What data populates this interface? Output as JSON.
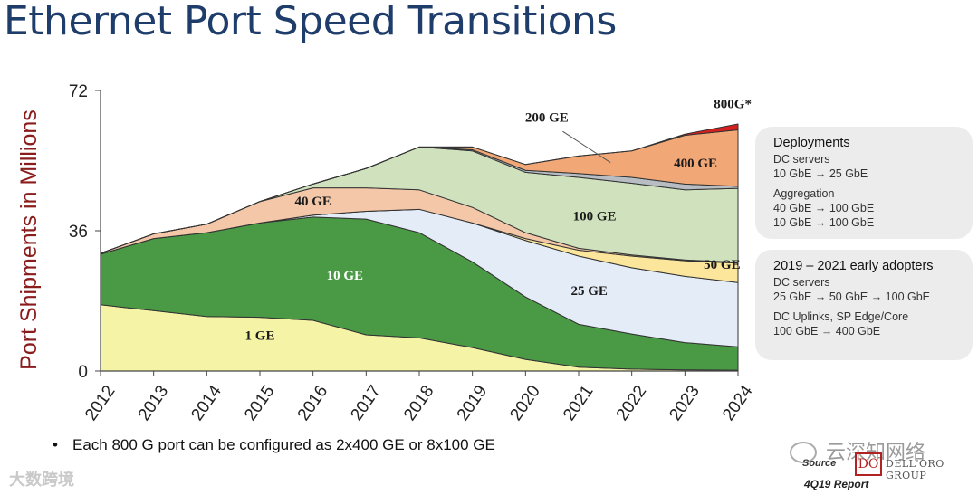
{
  "title": "Ethernet Port Speed Transitions",
  "chart_data": {
    "type": "area",
    "stacked": true,
    "title": "Ethernet Port Speed Transitions",
    "ylabel": "Port Shipments in Millions",
    "xlabel": "",
    "ylim": [
      0,
      72
    ],
    "yticks": [
      0,
      36,
      72
    ],
    "categories": [
      "2012",
      "2013",
      "2014",
      "2015",
      "2016",
      "2017",
      "2018",
      "2019",
      "2020",
      "2021",
      "2022",
      "2023",
      "2024"
    ],
    "series": [
      {
        "name": "1 GE",
        "color": "#f5f3a6",
        "values": [
          17,
          15.5,
          14,
          13.8,
          13,
          9.3,
          8.5,
          6,
          3,
          1,
          0.5,
          0.3,
          0.2
        ]
      },
      {
        "name": "10 GE",
        "color": "#4a9a45",
        "values": [
          13,
          18.5,
          21.5,
          24.2,
          26.5,
          29.7,
          27,
          22,
          16,
          11,
          9,
          7,
          6
        ]
      },
      {
        "name": "25 GE",
        "color": "#e4ecf7",
        "values": [
          0,
          0,
          0,
          0,
          0.5,
          2,
          6,
          10,
          14.5,
          17.5,
          17,
          17,
          16.5
        ]
      },
      {
        "name": "50 GE",
        "color": "#fbe69c",
        "values": [
          0,
          0,
          0,
          0,
          0,
          0,
          0,
          0,
          0.5,
          1.5,
          3,
          4,
          5
        ]
      },
      {
        "name": "40 GE",
        "color": "#f3c7a8",
        "values": [
          0.2,
          1.2,
          2.2,
          5.5,
          7,
          6,
          5,
          4,
          1.5,
          0.5,
          0.3,
          0.2,
          0.2
        ]
      },
      {
        "name": "100 GE",
        "color": "#cfe2bd",
        "values": [
          0,
          0,
          0,
          0,
          1,
          5,
          11,
          14.5,
          15.5,
          18.2,
          18.4,
          18,
          19
        ]
      },
      {
        "name": "200 GE",
        "color": "#b7bdc3",
        "values": [
          0,
          0,
          0,
          0,
          0,
          0,
          0,
          0.3,
          0.5,
          1,
          1.5,
          1.5,
          0.5
        ]
      },
      {
        "name": "400 GE",
        "color": "#f1a876",
        "values": [
          0,
          0,
          0,
          0,
          0,
          0,
          0,
          0.7,
          1.5,
          4.5,
          6.8,
          12.5,
          14.5
        ]
      },
      {
        "name": "800G*",
        "color": "#d62020",
        "values": [
          0,
          0,
          0,
          0,
          0,
          0,
          0,
          0,
          0,
          0,
          0,
          0.3,
          1.5
        ]
      }
    ],
    "labels": [
      {
        "series": "1 GE",
        "text": "1 GE",
        "x": "2015",
        "y": 8
      },
      {
        "series": "10 GE",
        "text": "10 GE",
        "x": "2016.6",
        "y": 23.5
      },
      {
        "series": "25 GE",
        "text": "25 GE",
        "x": "2021.2",
        "y": 19.5
      },
      {
        "series": "50 GE",
        "text": "50 GE",
        "x": "2023.7",
        "y": 26.3
      },
      {
        "series": "40 GE",
        "text": "40 GE",
        "x": "2016",
        "y": 42.5
      },
      {
        "series": "100 GE",
        "text": "100 GE",
        "x": "2021.3",
        "y": 38.7
      },
      {
        "series": "200 GE",
        "text": "200 GE",
        "x": "2020.4",
        "y": 64
      },
      {
        "series": "400 GE",
        "text": "400 GE",
        "x": "2023.2",
        "y": 52.3
      },
      {
        "series": "800G*",
        "text": "800G*",
        "x": "2023.9",
        "y": 67.5
      }
    ]
  },
  "panels": [
    {
      "heading": "Deployments",
      "groups": [
        {
          "lines": [
            "DC servers",
            "10 GbE → 25 GbE"
          ]
        },
        {
          "lines": [
            "Aggregation",
            "40 GbE → 100 GbE",
            "10 GbE → 100 GbE"
          ]
        }
      ]
    },
    {
      "heading": "2019 – 2021 early adopters",
      "groups": [
        {
          "lines": [
            "DC servers",
            "25 GbE → 50 GbE → 100 GbE"
          ]
        },
        {
          "lines": [
            "DC Uplinks, SP Edge/Core",
            "100 GbE → 400 GbE"
          ]
        }
      ]
    }
  ],
  "footnote": "Each 800 G port can be configured as 2x400 GE or 8x100 GE",
  "source": {
    "label": "Source",
    "logo_mark": "DO",
    "logo_text": "DELL'ORO GROUP",
    "report": "4Q19 Report"
  },
  "watermarks": {
    "left": "大数跨境",
    "right": "云深知网络"
  }
}
